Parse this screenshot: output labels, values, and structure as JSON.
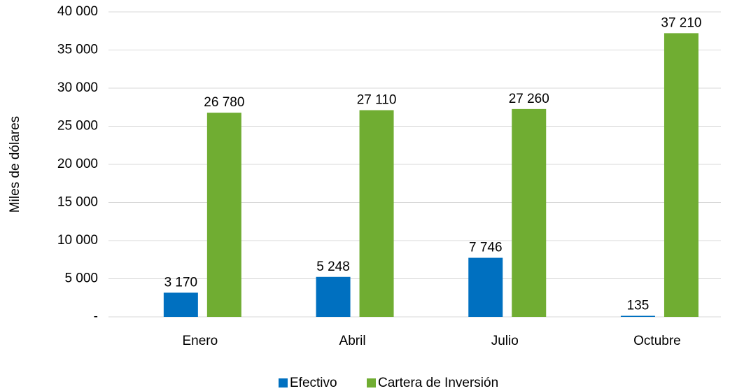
{
  "chart_data": {
    "type": "bar",
    "y_label": "Miles de dólares",
    "categories": [
      "Enero",
      "Abril",
      "Julio",
      "Octubre"
    ],
    "series": [
      {
        "name": "Efectivo",
        "color": "#0070c0",
        "values": [
          3170,
          5248,
          7746,
          135
        ],
        "value_labels": [
          "3 170",
          "5 248",
          "7 746",
          "135"
        ]
      },
      {
        "name": "Cartera de Inversión",
        "color": "#70ad32",
        "values": [
          26780,
          27110,
          27260,
          37210
        ],
        "value_labels": [
          "26 780",
          "27 110",
          "27 260",
          "37 210"
        ]
      }
    ],
    "ylim": [
      0,
      40000
    ],
    "yticks": [
      {
        "value": 0,
        "label": "-"
      },
      {
        "value": 5000,
        "label": "5 000"
      },
      {
        "value": 10000,
        "label": "10 000"
      },
      {
        "value": 15000,
        "label": "15 000"
      },
      {
        "value": 20000,
        "label": "20 000"
      },
      {
        "value": 25000,
        "label": "25 000"
      },
      {
        "value": 30000,
        "label": "30 000"
      },
      {
        "value": 35000,
        "label": "35 000"
      },
      {
        "value": 40000,
        "label": "40 000"
      }
    ],
    "grid": true,
    "legend": "bottom"
  }
}
